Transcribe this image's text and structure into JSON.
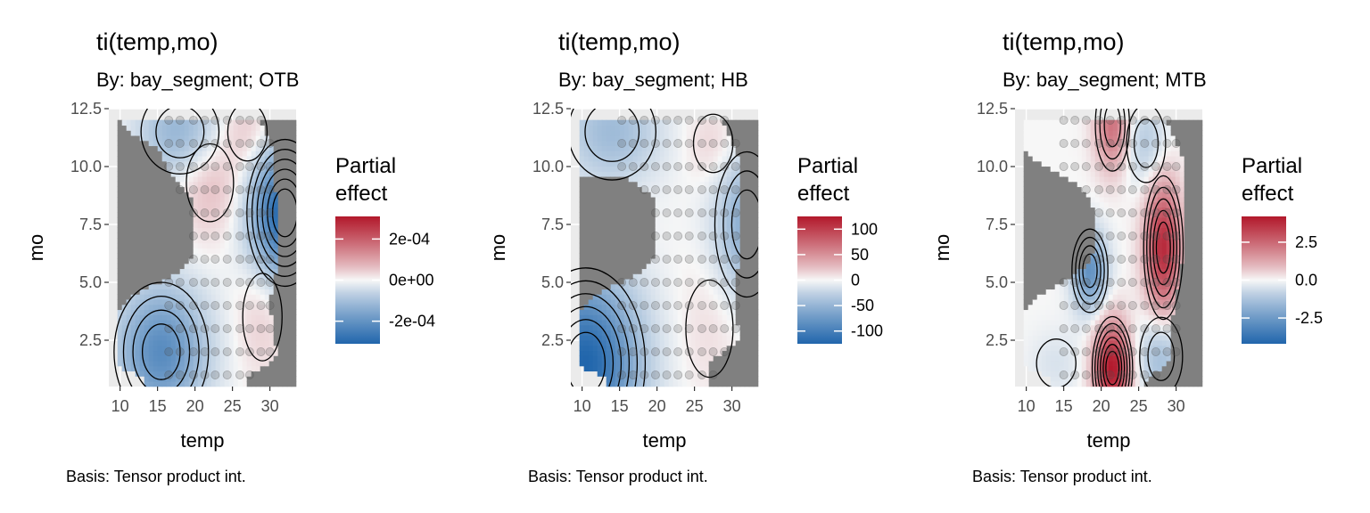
{
  "colors": {
    "panel_bg": "#ebebeb",
    "grid": "#ffffff",
    "mask": "#808080",
    "contour": "#000000",
    "point": "#4d4d4d",
    "low": "#2166ac",
    "mid": "#f7f7f7",
    "high": "#b2182b"
  },
  "chart_data": [
    {
      "type": "heatmap",
      "title": "ti(temp,mo)",
      "subtitle": "By: bay_segment; OTB",
      "xlabel": "temp",
      "ylabel": "mo",
      "caption": "Basis: Tensor product int.",
      "xticks": [
        "10",
        "15",
        "20",
        "25",
        "30"
      ],
      "yticks": [
        "2.5",
        "5.0",
        "7.5",
        "10.0",
        "12.5"
      ],
      "xlim": [
        8.5,
        33.5
      ],
      "ylim": [
        0.5,
        12.5
      ],
      "legend": {
        "title_lines": [
          "Partial",
          "effect"
        ],
        "labels": [
          "2e-04",
          "0e+00",
          "-2e-04"
        ],
        "values": [
          0.0002,
          0,
          -0.0002
        ],
        "min": -0.00031,
        "max": 0.00031
      },
      "field": {
        "amplitude": 0.0003,
        "blobs": [
          {
            "x": 32,
            "y": 8,
            "sx": 3.2,
            "sy": 2.0,
            "a": -1.0
          },
          {
            "x": 15.5,
            "y": 2.0,
            "sx": 4.2,
            "sy": 2.0,
            "a": -0.7
          },
          {
            "x": 18,
            "y": 11.5,
            "sx": 4.0,
            "sy": 1.4,
            "a": -0.4
          },
          {
            "x": 22,
            "y": 9.3,
            "sx": 3.0,
            "sy": 1.6,
            "a": 0.22
          },
          {
            "x": 27,
            "y": 11.5,
            "sx": 2.5,
            "sy": 1.2,
            "a": 0.18
          },
          {
            "x": 29,
            "y": 3.5,
            "sx": 2.5,
            "sy": 1.8,
            "a": 0.14
          }
        ],
        "edges": [
          [
            9.5,
            1.2
          ],
          [
            13.5,
            1.2
          ],
          [
            19.0,
            0.5
          ],
          [
            27.0,
            0.9
          ],
          [
            31.0,
            1.8
          ],
          [
            30.0,
            4.2
          ],
          [
            31.3,
            6.2
          ],
          [
            30.5,
            10.8
          ],
          [
            28.5,
            12.0
          ],
          [
            9.8,
            12.0
          ]
        ]
      },
      "points": {
        "temps": [
          16.5,
          18,
          19.8,
          21.3,
          22.7,
          24.3,
          26.0,
          27.3,
          28.8,
          30.0
        ],
        "months": [
          1,
          2,
          3,
          4,
          5,
          6,
          7,
          8,
          9,
          10,
          11,
          12
        ]
      }
    },
    {
      "type": "heatmap",
      "title": "ti(temp,mo)",
      "subtitle": "By: bay_segment; HB",
      "xlabel": "temp",
      "ylabel": "mo",
      "caption": "Basis: Tensor product int.",
      "xticks": [
        "10",
        "15",
        "20",
        "25",
        "30"
      ],
      "yticks": [
        "2.5",
        "5.0",
        "7.5",
        "10.0",
        "12.5"
      ],
      "xlim": [
        8.5,
        33.5
      ],
      "ylim": [
        0.5,
        12.5
      ],
      "legend": {
        "title_lines": [
          "Partial",
          "effect"
        ],
        "labels": [
          "100",
          "50",
          "0",
          "-50",
          "-100"
        ],
        "values": [
          100,
          50,
          0,
          -50,
          -100
        ],
        "min": -125,
        "max": 125
      },
      "field": {
        "amplitude": 110,
        "blobs": [
          {
            "x": 10.5,
            "y": 1.5,
            "sx": 5.0,
            "sy": 2.6,
            "a": -1.0
          },
          {
            "x": 32,
            "y": 7.5,
            "sx": 3.0,
            "sy": 2.2,
            "a": -0.45
          },
          {
            "x": 14,
            "y": 11.5,
            "sx": 4.5,
            "sy": 1.6,
            "a": -0.35
          },
          {
            "x": 27.5,
            "y": 11.0,
            "sx": 2.5,
            "sy": 1.2,
            "a": 0.12
          },
          {
            "x": 27,
            "y": 3.0,
            "sx": 3.0,
            "sy": 2.0,
            "a": 0.08
          }
        ],
        "edges": [
          [
            9.5,
            1.1
          ],
          [
            13.5,
            0.8
          ],
          [
            19.0,
            0.5
          ],
          [
            27.0,
            1.6
          ],
          [
            31.0,
            2.5
          ],
          [
            30.5,
            4.5
          ],
          [
            31.3,
            7.0
          ],
          [
            30.8,
            10.6
          ],
          [
            28.5,
            12.0
          ],
          [
            9.8,
            12.0
          ]
        ]
      },
      "points": {
        "temps": [
          15.3,
          16.8,
          18.3,
          19.8,
          21.3,
          22.8,
          24.3,
          26.0,
          27.5,
          29.0,
          30.5
        ],
        "months": [
          1,
          2,
          3,
          4,
          5,
          6,
          7,
          8,
          9,
          10,
          11,
          12
        ]
      }
    },
    {
      "type": "heatmap",
      "title": "ti(temp,mo)",
      "subtitle": "By: bay_segment; MTB",
      "xlabel": "temp",
      "ylabel": "mo",
      "caption": "Basis: Tensor product int.",
      "xticks": [
        "10",
        "15",
        "20",
        "25",
        "30"
      ],
      "yticks": [
        "2.5",
        "5.0",
        "7.5",
        "10.0",
        "12.5"
      ],
      "xlim": [
        8.5,
        33.5
      ],
      "ylim": [
        0.5,
        12.5
      ],
      "legend": {
        "title_lines": [
          "Partial",
          "effect"
        ],
        "labels": [
          "2.5",
          "0.0",
          "-2.5"
        ],
        "values": [
          2.5,
          0,
          -2.5
        ],
        "min": -4.2,
        "max": 4.2
      },
      "field": {
        "amplitude": 3.9,
        "blobs": [
          {
            "x": 21.5,
            "y": 1.3,
            "sx": 1.7,
            "sy": 1.4,
            "a": 1.0
          },
          {
            "x": 28.3,
            "y": 6.5,
            "sx": 1.7,
            "sy": 2.0,
            "a": 0.9
          },
          {
            "x": 21.5,
            "y": 11.8,
            "sx": 1.6,
            "sy": 1.4,
            "a": 0.55
          },
          {
            "x": 18.5,
            "y": 5.5,
            "sx": 1.6,
            "sy": 1.2,
            "a": -0.65
          },
          {
            "x": 28,
            "y": 1.8,
            "sx": 2.2,
            "sy": 1.3,
            "a": -0.35
          },
          {
            "x": 26,
            "y": 11.0,
            "sx": 2.0,
            "sy": 1.3,
            "a": -0.25
          },
          {
            "x": 14,
            "y": 1.5,
            "sx": 2.5,
            "sy": 1.0,
            "a": -0.1
          }
        ],
        "edges": [
          [
            10.8,
            1.5
          ],
          [
            14.0,
            0.8
          ],
          [
            19.5,
            0.5
          ],
          [
            26.0,
            0.8
          ],
          [
            29.0,
            1.5
          ],
          [
            29.5,
            3.5
          ],
          [
            30.8,
            5.5
          ],
          [
            31.0,
            8.5
          ],
          [
            30.8,
            10.6
          ],
          [
            28.5,
            12.0
          ],
          [
            15.5,
            12.0
          ],
          [
            13.0,
            10.0
          ],
          [
            10.8,
            9.8
          ]
        ]
      },
      "points": {
        "temps": [
          15.0,
          16.5,
          18.0,
          19.7,
          21.2,
          22.7,
          24.2,
          25.8,
          27.3,
          28.8,
          30.0
        ],
        "months": [
          1,
          2,
          3,
          4,
          5,
          6,
          7,
          8,
          9,
          10,
          11,
          12
        ]
      }
    }
  ]
}
